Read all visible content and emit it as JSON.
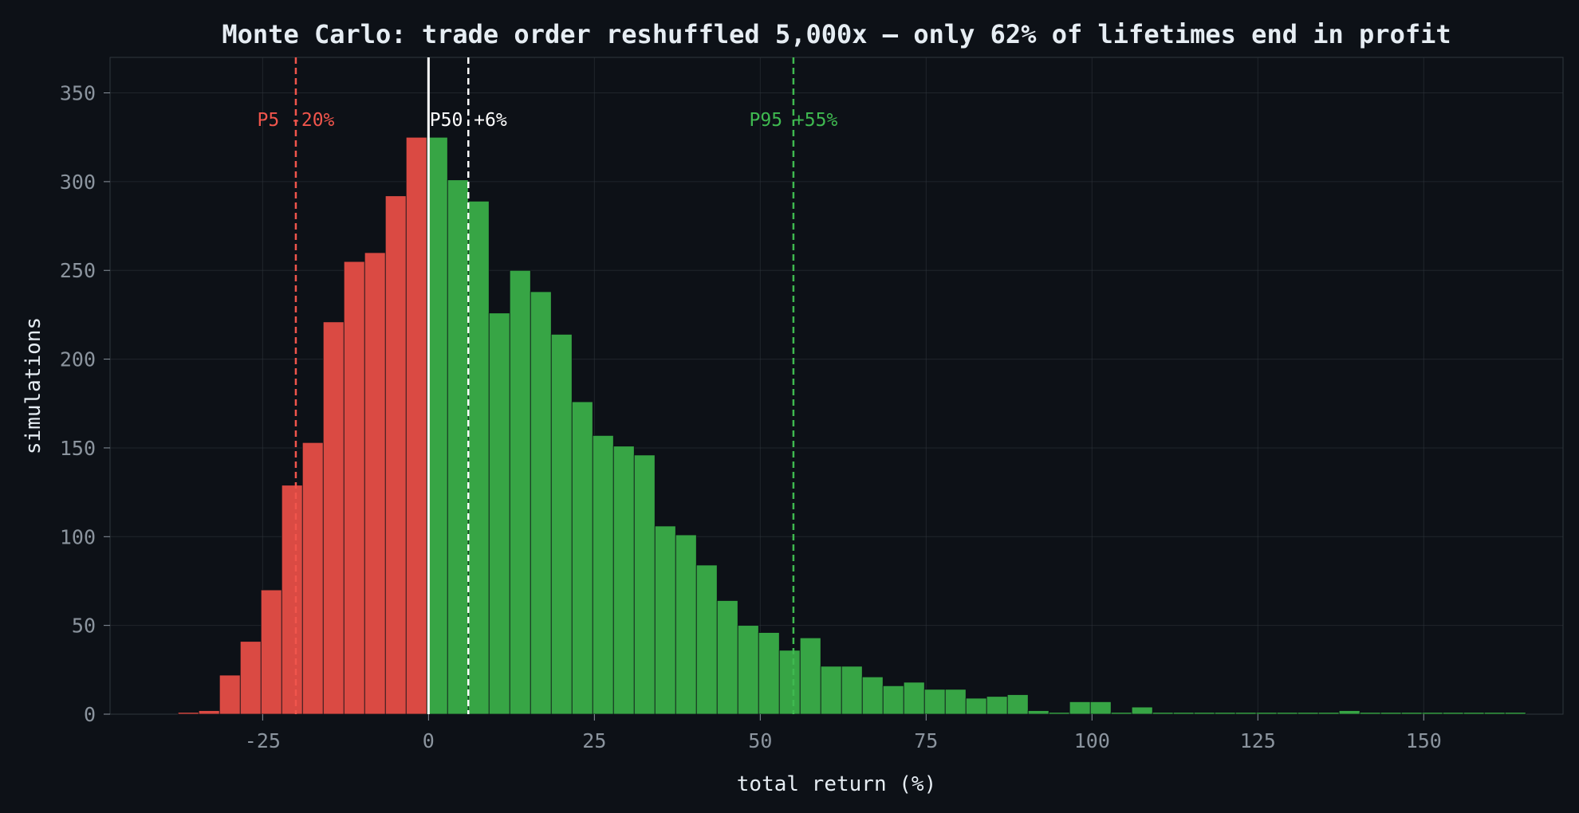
{
  "chart_data": {
    "type": "bar",
    "title": "Monte Carlo: trade order reshuffled 5,000x — only 62% of lifetimes end in profit",
    "xlabel": "total return (%)",
    "ylabel": "simulations",
    "xlim": [
      -48,
      171
    ],
    "ylim": [
      0,
      370
    ],
    "xticks": [
      -25,
      0,
      25,
      50,
      75,
      100,
      125,
      150
    ],
    "yticks": [
      0,
      50,
      100,
      150,
      200,
      250,
      300,
      350
    ],
    "grid": true,
    "bin_width": 3.125,
    "bin_start": -40.875,
    "values": [
      0,
      1,
      2,
      22,
      41,
      70,
      129,
      153,
      221,
      255,
      260,
      292,
      325,
      325,
      301,
      289,
      226,
      250,
      238,
      214,
      176,
      157,
      151,
      146,
      106,
      101,
      84,
      64,
      50,
      46,
      36,
      43,
      27,
      27,
      21,
      16,
      18,
      14,
      14,
      9,
      10,
      11,
      2,
      1,
      7,
      7,
      1,
      4,
      1,
      1,
      1,
      1,
      1,
      1,
      1,
      1,
      1,
      2,
      1,
      1,
      1,
      1,
      1,
      1,
      1,
      1
    ],
    "colors": {
      "loss": "#da4a43",
      "profit": "#37a545"
    },
    "zero_line": {
      "x": 0,
      "color": "#ffffff"
    },
    "percentiles": [
      {
        "name": "P5",
        "x": -20,
        "label": "P5 -20%",
        "color": "#f0554c"
      },
      {
        "name": "P50",
        "x": 6,
        "label": "P50 +6%",
        "color": "#ffffff"
      },
      {
        "name": "P95",
        "x": 55,
        "label": "P95 +55%",
        "color": "#3fb950"
      }
    ]
  }
}
